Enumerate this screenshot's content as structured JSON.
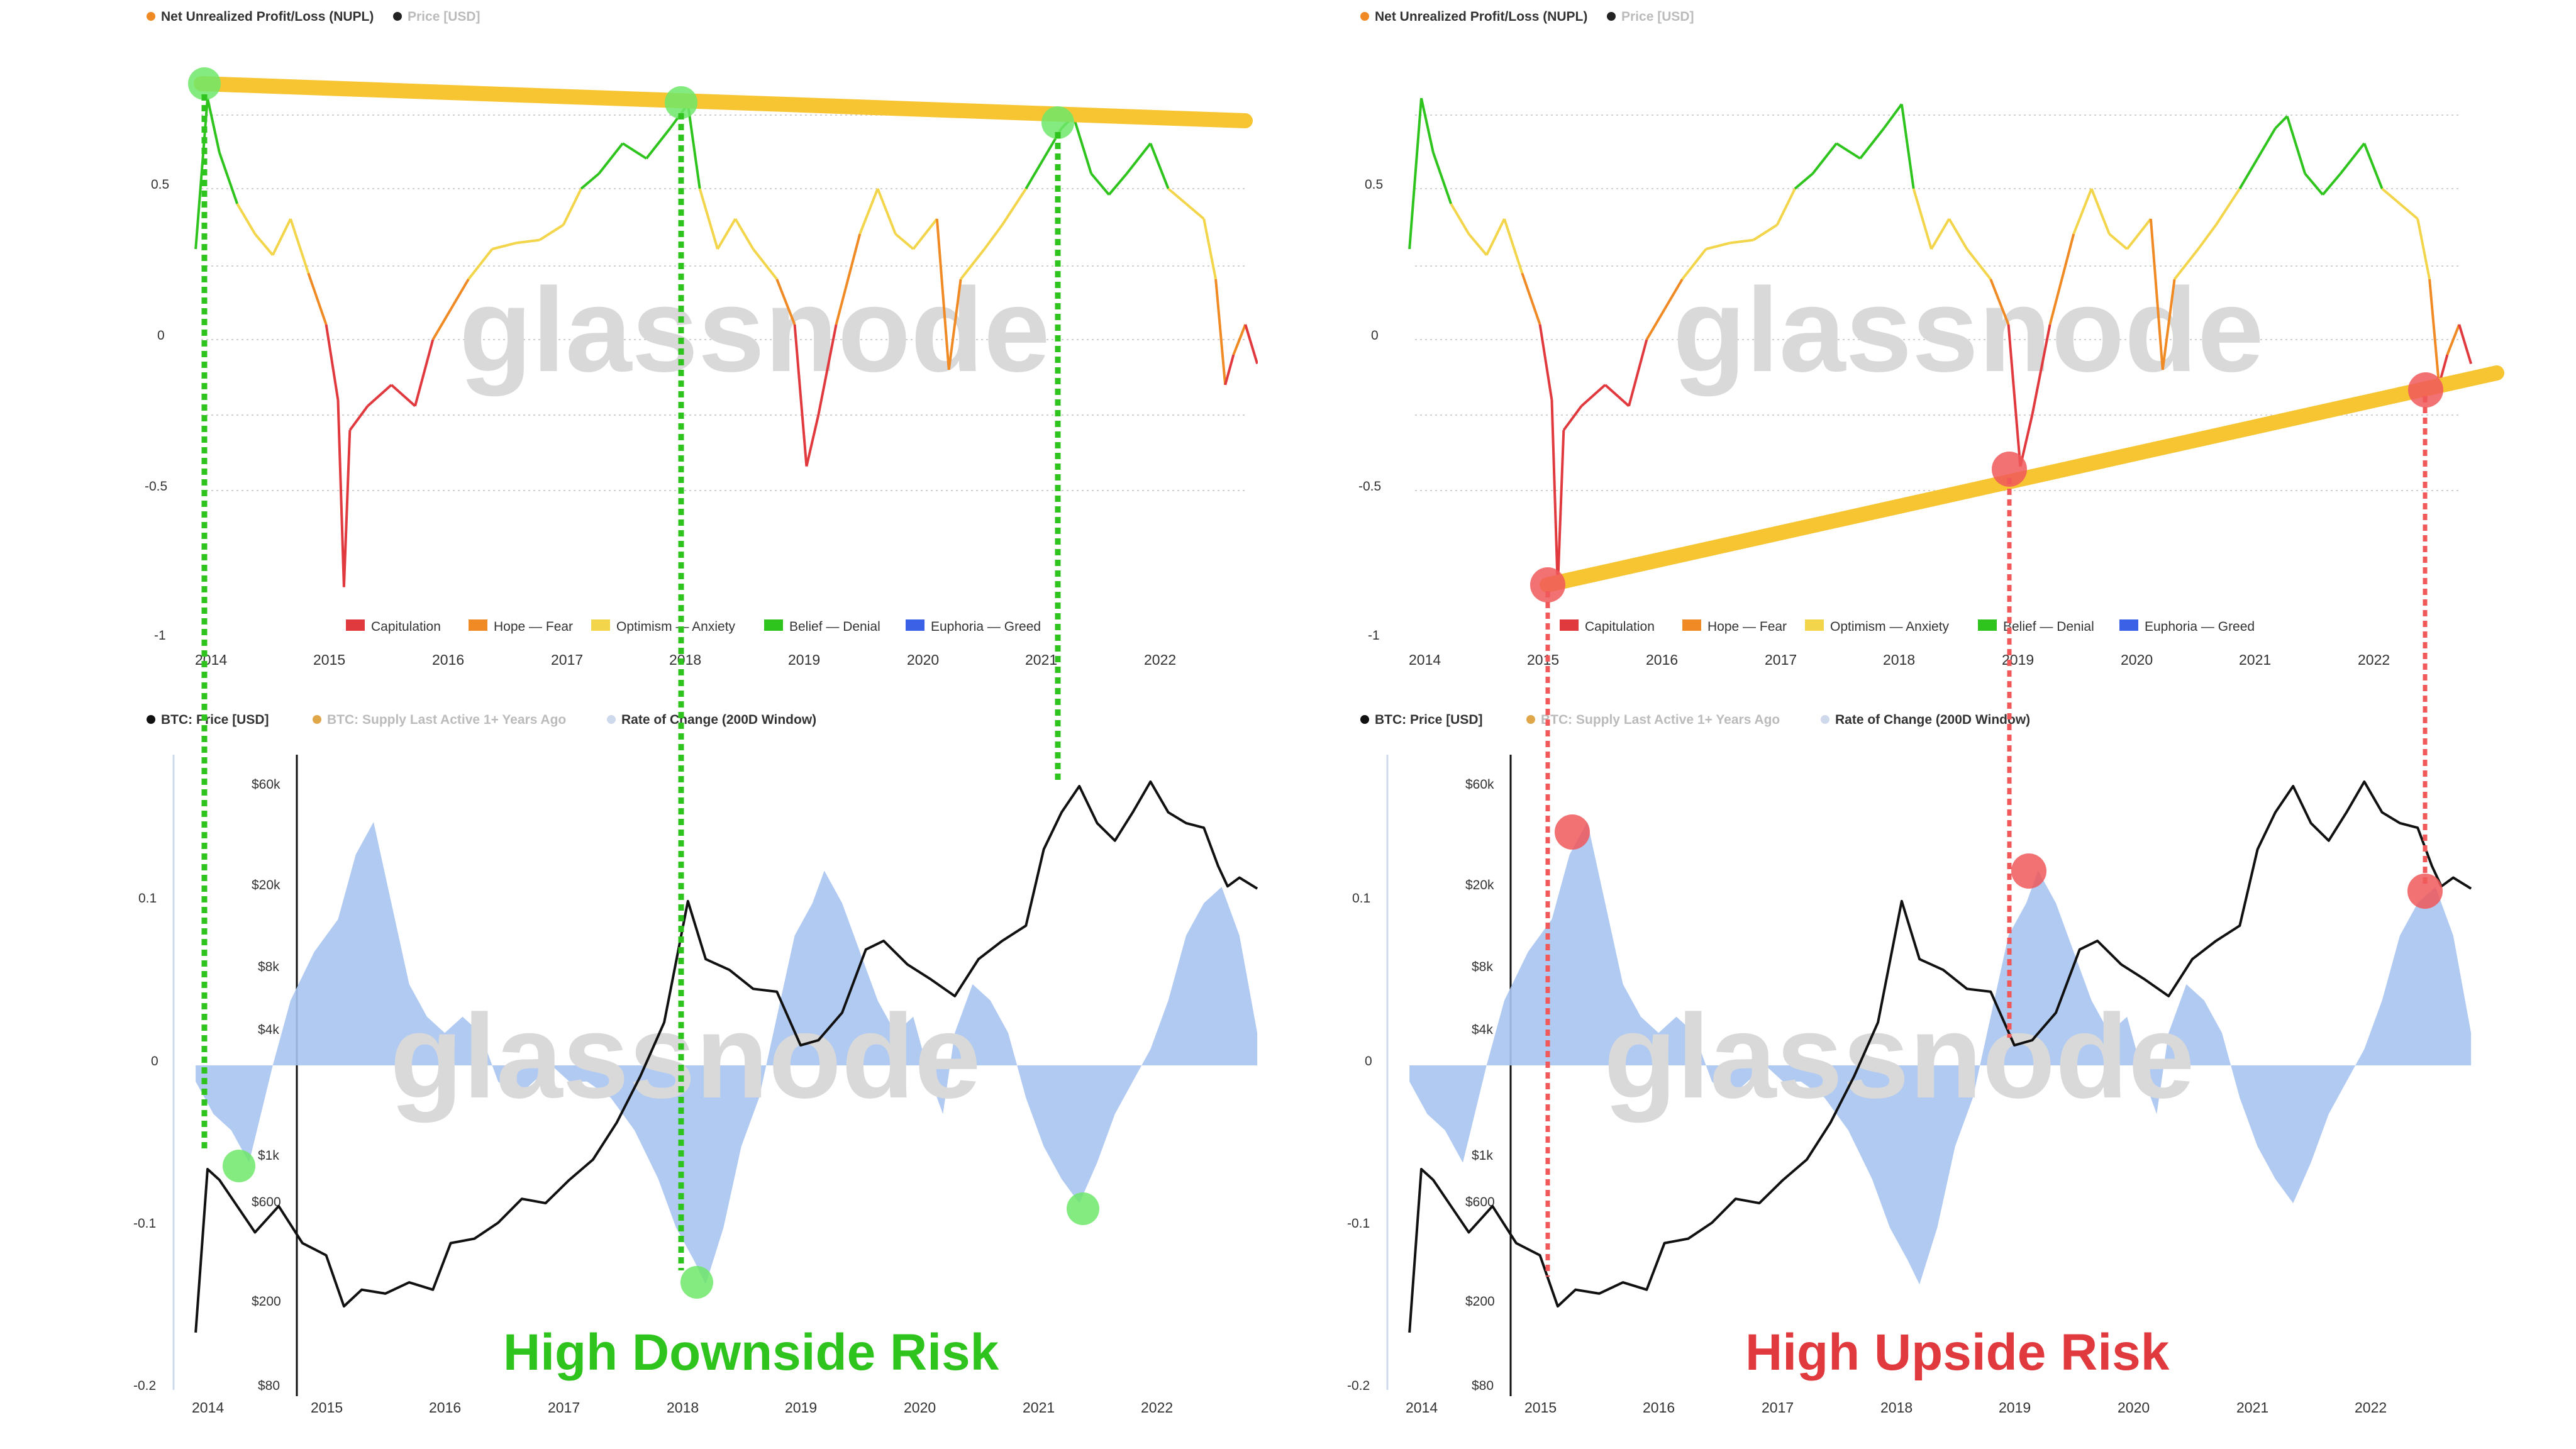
{
  "top_legend": {
    "nupl": "Net Unrealized Profit/Loss (NUPL)",
    "price": "Price [USD]"
  },
  "top_zones": [
    {
      "label": "Capitulation",
      "color": "#e0393e"
    },
    {
      "label": "Hope — Fear",
      "color": "#f08a24"
    },
    {
      "label": "Optimism — Anxiety",
      "color": "#f2d54a"
    },
    {
      "label": "Belief — Denial",
      "color": "#2ec41d"
    },
    {
      "label": "Euphoria — Greed",
      "color": "#3b62e6"
    }
  ],
  "bottom_legend": {
    "price": "BTC: Price [USD]",
    "supply": "BTC: Supply Last Active 1+ Years Ago",
    "roc": "Rate of Change (200D Window)"
  },
  "watermark": "glassnode",
  "top_y_ticks": [
    "0.5",
    "0",
    "-0.5",
    "-1"
  ],
  "bottom_roc_ticks": [
    "0.1",
    "0",
    "-0.1",
    "-0.2"
  ],
  "bottom_price_ticks": [
    "$60k",
    "$20k",
    "$8k",
    "$4k",
    "$1k",
    "$600",
    "$200",
    "$80"
  ],
  "x_ticks": [
    "2014",
    "2015",
    "2016",
    "2017",
    "2018",
    "2019",
    "2020",
    "2021",
    "2022"
  ],
  "captions": {
    "left": "High Downside Risk",
    "right": "High Upside Risk"
  },
  "colors": {
    "downside": "#2ec41d",
    "upside": "#e0393e",
    "trendline": "#f7c531",
    "roc_fill": "#a9c4f1",
    "price_line": "#111111",
    "marker_green": "#6ee86a",
    "marker_red": "#f0585a"
  },
  "chart_data": [
    {
      "type": "line",
      "title": "",
      "panel": "left-top",
      "series": [
        {
          "name": "Net Unrealized Profit/Loss (NUPL)",
          "values_from": "nupl_series"
        }
      ],
      "ylim": [
        -1,
        0.85
      ],
      "y_ticks": [
        0.5,
        0,
        -0.5,
        -1
      ],
      "x_ticks": [
        2014,
        2015,
        2016,
        2017,
        2018,
        2019,
        2020,
        2021,
        2022
      ],
      "annotation": "descending trendline through cycle tops",
      "highlighted_points": [
        [
          2013.9,
          0.82
        ],
        [
          2017.95,
          0.79
        ],
        [
          2021.15,
          0.73
        ]
      ]
    },
    {
      "type": "line",
      "panel": "right-top",
      "series": [
        {
          "name": "Net Unrealized Profit/Loss (NUPL)",
          "values_from": "nupl_series"
        }
      ],
      "ylim": [
        -1,
        0.85
      ],
      "annotation": "ascending trendline through cycle bottoms",
      "highlighted_points": [
        [
          2015.05,
          -0.81
        ],
        [
          2018.95,
          -0.43
        ],
        [
          2022.45,
          -0.16
        ]
      ]
    },
    {
      "type": "area",
      "panel": "left-bottom",
      "series": [
        {
          "name": "BTC: Price [USD]",
          "values_from": "price_series"
        },
        {
          "name": "Rate of Change (200D Window)",
          "values_from": "roc_series"
        }
      ],
      "highlighted_points": [
        [
          2014.25,
          -0.058
        ],
        [
          2018.1,
          -0.132
        ],
        [
          2021.35,
          -0.082
        ]
      ]
    },
    {
      "type": "area",
      "panel": "right-bottom",
      "series": [
        {
          "name": "BTC: Price [USD]",
          "values_from": "price_series"
        },
        {
          "name": "Rate of Change (200D Window)",
          "values_from": "roc_series"
        }
      ],
      "highlighted_points": [
        [
          2015.3,
          0.147
        ],
        [
          2019.1,
          0.122
        ],
        [
          2022.45,
          0.108
        ]
      ]
    }
  ],
  "nupl_series": [
    [
      2013.8,
      0.3
    ],
    [
      2013.9,
      0.8
    ],
    [
      2014.0,
      0.62
    ],
    [
      2014.15,
      0.45
    ],
    [
      2014.3,
      0.35
    ],
    [
      2014.45,
      0.28
    ],
    [
      2014.6,
      0.4
    ],
    [
      2014.75,
      0.22
    ],
    [
      2014.9,
      0.05
    ],
    [
      2015.0,
      -0.2
    ],
    [
      2015.05,
      -0.82
    ],
    [
      2015.1,
      -0.3
    ],
    [
      2015.25,
      -0.22
    ],
    [
      2015.45,
      -0.15
    ],
    [
      2015.65,
      -0.22
    ],
    [
      2015.8,
      0.0
    ],
    [
      2015.95,
      0.1
    ],
    [
      2016.1,
      0.2
    ],
    [
      2016.3,
      0.3
    ],
    [
      2016.5,
      0.32
    ],
    [
      2016.7,
      0.33
    ],
    [
      2016.9,
      0.38
    ],
    [
      2017.05,
      0.5
    ],
    [
      2017.2,
      0.55
    ],
    [
      2017.4,
      0.65
    ],
    [
      2017.6,
      0.6
    ],
    [
      2017.8,
      0.7
    ],
    [
      2017.95,
      0.78
    ],
    [
      2018.05,
      0.5
    ],
    [
      2018.2,
      0.3
    ],
    [
      2018.35,
      0.4
    ],
    [
      2018.5,
      0.3
    ],
    [
      2018.7,
      0.2
    ],
    [
      2018.85,
      0.05
    ],
    [
      2018.95,
      -0.42
    ],
    [
      2019.05,
      -0.25
    ],
    [
      2019.2,
      0.05
    ],
    [
      2019.4,
      0.35
    ],
    [
      2019.55,
      0.5
    ],
    [
      2019.7,
      0.35
    ],
    [
      2019.85,
      0.3
    ],
    [
      2020.05,
      0.4
    ],
    [
      2020.15,
      -0.1
    ],
    [
      2020.25,
      0.2
    ],
    [
      2020.45,
      0.3
    ],
    [
      2020.6,
      0.38
    ],
    [
      2020.8,
      0.5
    ],
    [
      2020.95,
      0.6
    ],
    [
      2021.1,
      0.7
    ],
    [
      2021.2,
      0.74
    ],
    [
      2021.35,
      0.55
    ],
    [
      2021.5,
      0.48
    ],
    [
      2021.65,
      0.55
    ],
    [
      2021.85,
      0.65
    ],
    [
      2022.0,
      0.5
    ],
    [
      2022.15,
      0.45
    ],
    [
      2022.3,
      0.4
    ],
    [
      2022.4,
      0.2
    ],
    [
      2022.48,
      -0.15
    ],
    [
      2022.55,
      -0.05
    ],
    [
      2022.65,
      0.05
    ],
    [
      2022.75,
      -0.08
    ]
  ],
  "price_series": [
    [
      2013.8,
      150
    ],
    [
      2013.9,
      900
    ],
    [
      2014.0,
      800
    ],
    [
      2014.15,
      600
    ],
    [
      2014.3,
      450
    ],
    [
      2014.5,
      600
    ],
    [
      2014.7,
      400
    ],
    [
      2014.9,
      350
    ],
    [
      2015.05,
      200
    ],
    [
      2015.2,
      240
    ],
    [
      2015.4,
      230
    ],
    [
      2015.6,
      260
    ],
    [
      2015.8,
      240
    ],
    [
      2015.95,
      400
    ],
    [
      2016.15,
      420
    ],
    [
      2016.35,
      500
    ],
    [
      2016.55,
      650
    ],
    [
      2016.75,
      620
    ],
    [
      2016.95,
      800
    ],
    [
      2017.15,
      1000
    ],
    [
      2017.35,
      1500
    ],
    [
      2017.55,
      2500
    ],
    [
      2017.75,
      4500
    ],
    [
      2017.95,
      17000
    ],
    [
      2018.1,
      9000
    ],
    [
      2018.3,
      8000
    ],
    [
      2018.5,
      6500
    ],
    [
      2018.7,
      6300
    ],
    [
      2018.9,
      3500
    ],
    [
      2019.05,
      3700
    ],
    [
      2019.25,
      5000
    ],
    [
      2019.45,
      10000
    ],
    [
      2019.6,
      11000
    ],
    [
      2019.8,
      8500
    ],
    [
      2020.0,
      7200
    ],
    [
      2020.2,
      6000
    ],
    [
      2020.4,
      9000
    ],
    [
      2020.6,
      11000
    ],
    [
      2020.8,
      13000
    ],
    [
      2020.95,
      30000
    ],
    [
      2021.1,
      45000
    ],
    [
      2021.25,
      60000
    ],
    [
      2021.4,
      40000
    ],
    [
      2021.55,
      33000
    ],
    [
      2021.7,
      45000
    ],
    [
      2021.85,
      63000
    ],
    [
      2022.0,
      45000
    ],
    [
      2022.15,
      40000
    ],
    [
      2022.3,
      38000
    ],
    [
      2022.42,
      25000
    ],
    [
      2022.5,
      20000
    ],
    [
      2022.6,
      22000
    ],
    [
      2022.75,
      19500
    ]
  ],
  "roc_series": [
    [
      2013.8,
      -0.01
    ],
    [
      2013.95,
      -0.03
    ],
    [
      2014.1,
      -0.04
    ],
    [
      2014.25,
      -0.06
    ],
    [
      2014.35,
      -0.03
    ],
    [
      2014.45,
      0.0
    ],
    [
      2014.6,
      0.04
    ],
    [
      2014.8,
      0.07
    ],
    [
      2015.0,
      0.09
    ],
    [
      2015.15,
      0.13
    ],
    [
      2015.3,
      0.15
    ],
    [
      2015.45,
      0.1
    ],
    [
      2015.6,
      0.05
    ],
    [
      2015.75,
      0.03
    ],
    [
      2015.9,
      0.02
    ],
    [
      2016.05,
      0.03
    ],
    [
      2016.2,
      0.02
    ],
    [
      2016.35,
      -0.01
    ],
    [
      2016.5,
      -0.02
    ],
    [
      2016.65,
      -0.01
    ],
    [
      2016.8,
      0.0
    ],
    [
      2016.95,
      -0.01
    ],
    [
      2017.1,
      -0.01
    ],
    [
      2017.3,
      -0.02
    ],
    [
      2017.5,
      -0.04
    ],
    [
      2017.7,
      -0.07
    ],
    [
      2017.85,
      -0.1
    ],
    [
      2018.0,
      -0.12
    ],
    [
      2018.1,
      -0.135
    ],
    [
      2018.25,
      -0.1
    ],
    [
      2018.4,
      -0.05
    ],
    [
      2018.55,
      -0.02
    ],
    [
      2018.7,
      0.03
    ],
    [
      2018.85,
      0.08
    ],
    [
      2019.0,
      0.1
    ],
    [
      2019.1,
      0.12
    ],
    [
      2019.25,
      0.1
    ],
    [
      2019.4,
      0.07
    ],
    [
      2019.55,
      0.04
    ],
    [
      2019.7,
      0.02
    ],
    [
      2019.85,
      0.03
    ],
    [
      2020.0,
      -0.01
    ],
    [
      2020.1,
      -0.03
    ],
    [
      2020.2,
      0.02
    ],
    [
      2020.35,
      0.05
    ],
    [
      2020.5,
      0.04
    ],
    [
      2020.65,
      0.02
    ],
    [
      2020.8,
      -0.02
    ],
    [
      2020.95,
      -0.05
    ],
    [
      2021.1,
      -0.07
    ],
    [
      2021.25,
      -0.085
    ],
    [
      2021.4,
      -0.06
    ],
    [
      2021.55,
      -0.03
    ],
    [
      2021.7,
      -0.01
    ],
    [
      2021.85,
      0.01
    ],
    [
      2022.0,
      0.04
    ],
    [
      2022.15,
      0.08
    ],
    [
      2022.3,
      0.1
    ],
    [
      2022.45,
      0.11
    ],
    [
      2022.6,
      0.08
    ],
    [
      2022.75,
      0.02
    ]
  ]
}
